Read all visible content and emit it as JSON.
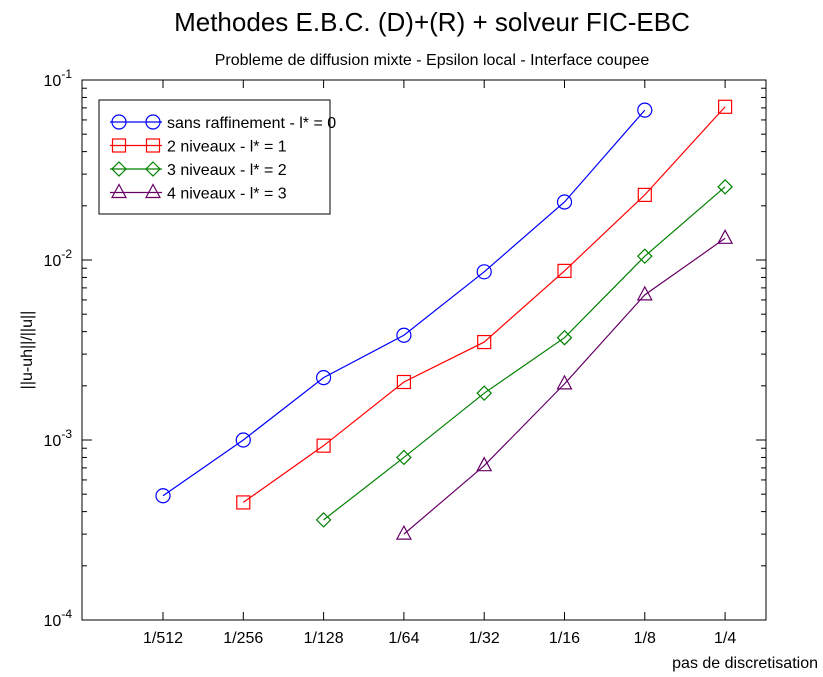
{
  "chart_data": {
    "type": "line",
    "title": "Methodes E.B.C. (D)+(R) + solveur FIC-EBC",
    "subtitle": "Probleme de diffusion mixte - Epsilon local - Interface coupee",
    "xlabel": "pas de discretisation",
    "ylabel": "||u-uh||/||u||",
    "x_scale": "log2",
    "y_scale": "log",
    "categories": [
      "1/512",
      "1/256",
      "1/128",
      "1/64",
      "1/32",
      "1/16",
      "1/8",
      "1/4"
    ],
    "ylim": [
      0.0001,
      0.1
    ],
    "y_ticks": [
      {
        "base": "10",
        "exp": "-4"
      },
      {
        "base": "10",
        "exp": "-3"
      },
      {
        "base": "10",
        "exp": "-2"
      },
      {
        "base": "10",
        "exp": "-1"
      }
    ],
    "grid": false,
    "legend_position": "top-left",
    "series": [
      {
        "name": "sans raffinement - l* = 0",
        "color": "#0000ff",
        "marker": "circle",
        "values": [
          0.00049,
          0.001,
          0.00222,
          0.00382,
          0.0086,
          0.021,
          0.068,
          null
        ]
      },
      {
        "name": "2 niveaux - l* = 1",
        "color": "#ff0000",
        "marker": "square",
        "values": [
          null,
          0.00045,
          0.00093,
          0.0021,
          0.0035,
          0.0087,
          0.023,
          0.071
        ]
      },
      {
        "name": "3 niveaux - l* = 2",
        "color": "#008000",
        "marker": "diamond",
        "values": [
          null,
          null,
          0.00036,
          0.0008,
          0.00182,
          0.0037,
          0.0105,
          0.0255
        ]
      },
      {
        "name": "4 niveaux - l* = 3",
        "color": "#660066",
        "marker": "triangle",
        "values": [
          null,
          null,
          null,
          0.0003,
          0.00072,
          0.00205,
          0.0064,
          0.0132
        ]
      }
    ]
  }
}
